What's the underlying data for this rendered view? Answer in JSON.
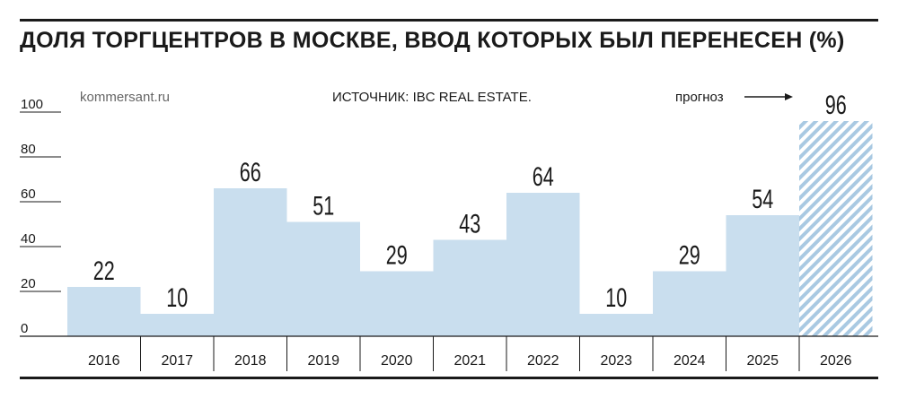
{
  "header": {
    "title": "ДОЛЯ ТОРГЦЕНТРОВ В МОСКВЕ, ВВОД КОТОРЫХ БЫЛ ПЕРЕНЕСЕН (%)"
  },
  "annotations": {
    "credit": "kommersant.ru",
    "source": "ИСТОЧНИК: IBC REAL ESTATE.",
    "forecast": "прогноз"
  },
  "colors": {
    "bar": "#c9deee",
    "forecast_hatch": "#a9c9e2",
    "text": "#1a1a1a"
  },
  "chart_data": {
    "type": "bar",
    "title": "ДОЛЯ ТОРГЦЕНТРОВ В МОСКВЕ, ВВОД КОТОРЫХ БЫЛ ПЕРЕНЕСЕН (%)",
    "categories": [
      "2016",
      "2017",
      "2018",
      "2019",
      "2020",
      "2021",
      "2022",
      "2023",
      "2024",
      "2025",
      "2026"
    ],
    "values": [
      22,
      10,
      66,
      51,
      29,
      43,
      64,
      10,
      29,
      54,
      96
    ],
    "forecast_categories": [
      "2026"
    ],
    "ylim": [
      0,
      100
    ],
    "yticks": [
      0,
      20,
      40,
      60,
      80,
      100
    ],
    "xlabel": "",
    "ylabel": "",
    "grid": false,
    "legend": "none"
  }
}
